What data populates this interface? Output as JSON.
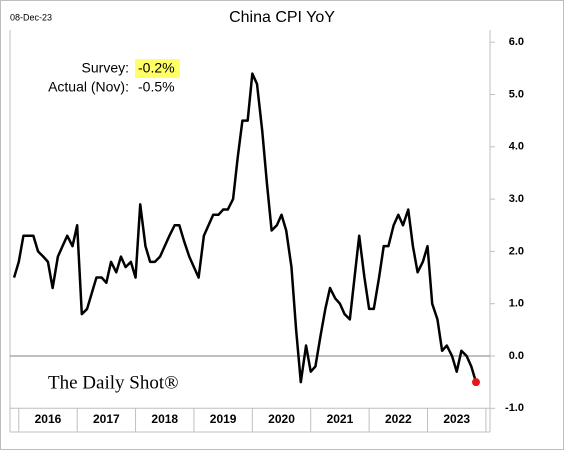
{
  "chart_data": {
    "type": "line",
    "date_stamp": "08-Dec-23",
    "title": "China CPI YoY",
    "annotations": [
      {
        "label": "Survey:",
        "value": "-0.2%",
        "highlight": "#ffff66"
      },
      {
        "label": "Actual (Nov):",
        "value": "-0.5%"
      }
    ],
    "source": "The Daily Shot®",
    "year_labels": [
      "2016",
      "2017",
      "2018",
      "2019",
      "2020",
      "2021",
      "2022",
      "2023"
    ],
    "xticks": [
      2016,
      2017,
      2018,
      2019,
      2020,
      2021,
      2022,
      2023,
      2024
    ],
    "xlim": [
      2015.85,
      2024.07
    ],
    "x": [
      2015.92,
      2016.0,
      2016.08,
      2016.17,
      2016.25,
      2016.33,
      2016.42,
      2016.5,
      2016.58,
      2016.67,
      2016.75,
      2016.83,
      2016.92,
      2017.0,
      2017.08,
      2017.17,
      2017.25,
      2017.33,
      2017.42,
      2017.5,
      2017.58,
      2017.67,
      2017.75,
      2017.83,
      2017.92,
      2018.0,
      2018.08,
      2018.17,
      2018.25,
      2018.33,
      2018.42,
      2018.5,
      2018.58,
      2018.67,
      2018.75,
      2018.83,
      2018.92,
      2019.0,
      2019.08,
      2019.17,
      2019.25,
      2019.33,
      2019.42,
      2019.5,
      2019.58,
      2019.67,
      2019.75,
      2019.83,
      2019.92,
      2020.0,
      2020.08,
      2020.17,
      2020.25,
      2020.33,
      2020.42,
      2020.5,
      2020.58,
      2020.67,
      2020.75,
      2020.83,
      2020.92,
      2021.0,
      2021.08,
      2021.17,
      2021.25,
      2021.33,
      2021.42,
      2021.5,
      2021.58,
      2021.67,
      2021.75,
      2021.83,
      2021.92,
      2022.0,
      2022.08,
      2022.17,
      2022.25,
      2022.33,
      2022.42,
      2022.5,
      2022.58,
      2022.67,
      2022.75,
      2022.83,
      2022.92,
      2023.0,
      2023.08,
      2023.17,
      2023.25,
      2023.33,
      2023.42,
      2023.5,
      2023.58,
      2023.67,
      2023.75,
      2023.83
    ],
    "series": [
      {
        "name": "China CPI YoY",
        "color": "#000000",
        "last_point_color": "#e8141a",
        "values": [
          1.5,
          1.8,
          2.3,
          2.3,
          2.3,
          2.0,
          1.9,
          1.8,
          1.3,
          1.9,
          2.1,
          2.3,
          2.1,
          2.5,
          0.8,
          0.9,
          1.2,
          1.5,
          1.5,
          1.4,
          1.8,
          1.6,
          1.9,
          1.7,
          1.8,
          1.5,
          2.9,
          2.1,
          1.8,
          1.8,
          1.9,
          2.1,
          2.3,
          2.5,
          2.5,
          2.2,
          1.9,
          1.7,
          1.5,
          2.3,
          2.5,
          2.7,
          2.7,
          2.8,
          2.8,
          3.0,
          3.8,
          4.5,
          4.5,
          5.4,
          5.2,
          4.3,
          3.3,
          2.4,
          2.5,
          2.7,
          2.4,
          1.7,
          0.5,
          -0.5,
          0.2,
          -0.3,
          -0.2,
          0.4,
          0.9,
          1.3,
          1.1,
          1.0,
          0.8,
          0.7,
          1.5,
          2.3,
          1.5,
          0.9,
          0.9,
          1.5,
          2.1,
          2.1,
          2.5,
          2.7,
          2.5,
          2.8,
          2.1,
          1.6,
          1.8,
          2.1,
          1.0,
          0.7,
          0.1,
          0.2,
          0.0,
          -0.3,
          0.1,
          0.0,
          -0.2,
          -0.5
        ]
      }
    ],
    "ylim": [
      -1,
      6
    ],
    "yticks": [
      {
        "value": -1,
        "label": "-1.0"
      },
      {
        "value": 0,
        "label": "0.0"
      },
      {
        "value": 1,
        "label": "1.0"
      },
      {
        "value": 2,
        "label": "2.0"
      },
      {
        "value": 3,
        "label": "3.0"
      },
      {
        "value": 4,
        "label": "4.0"
      },
      {
        "value": 5,
        "label": "5.0"
      },
      {
        "value": 6,
        "label": "6.0"
      }
    ],
    "zero_line": true,
    "grid": false
  }
}
